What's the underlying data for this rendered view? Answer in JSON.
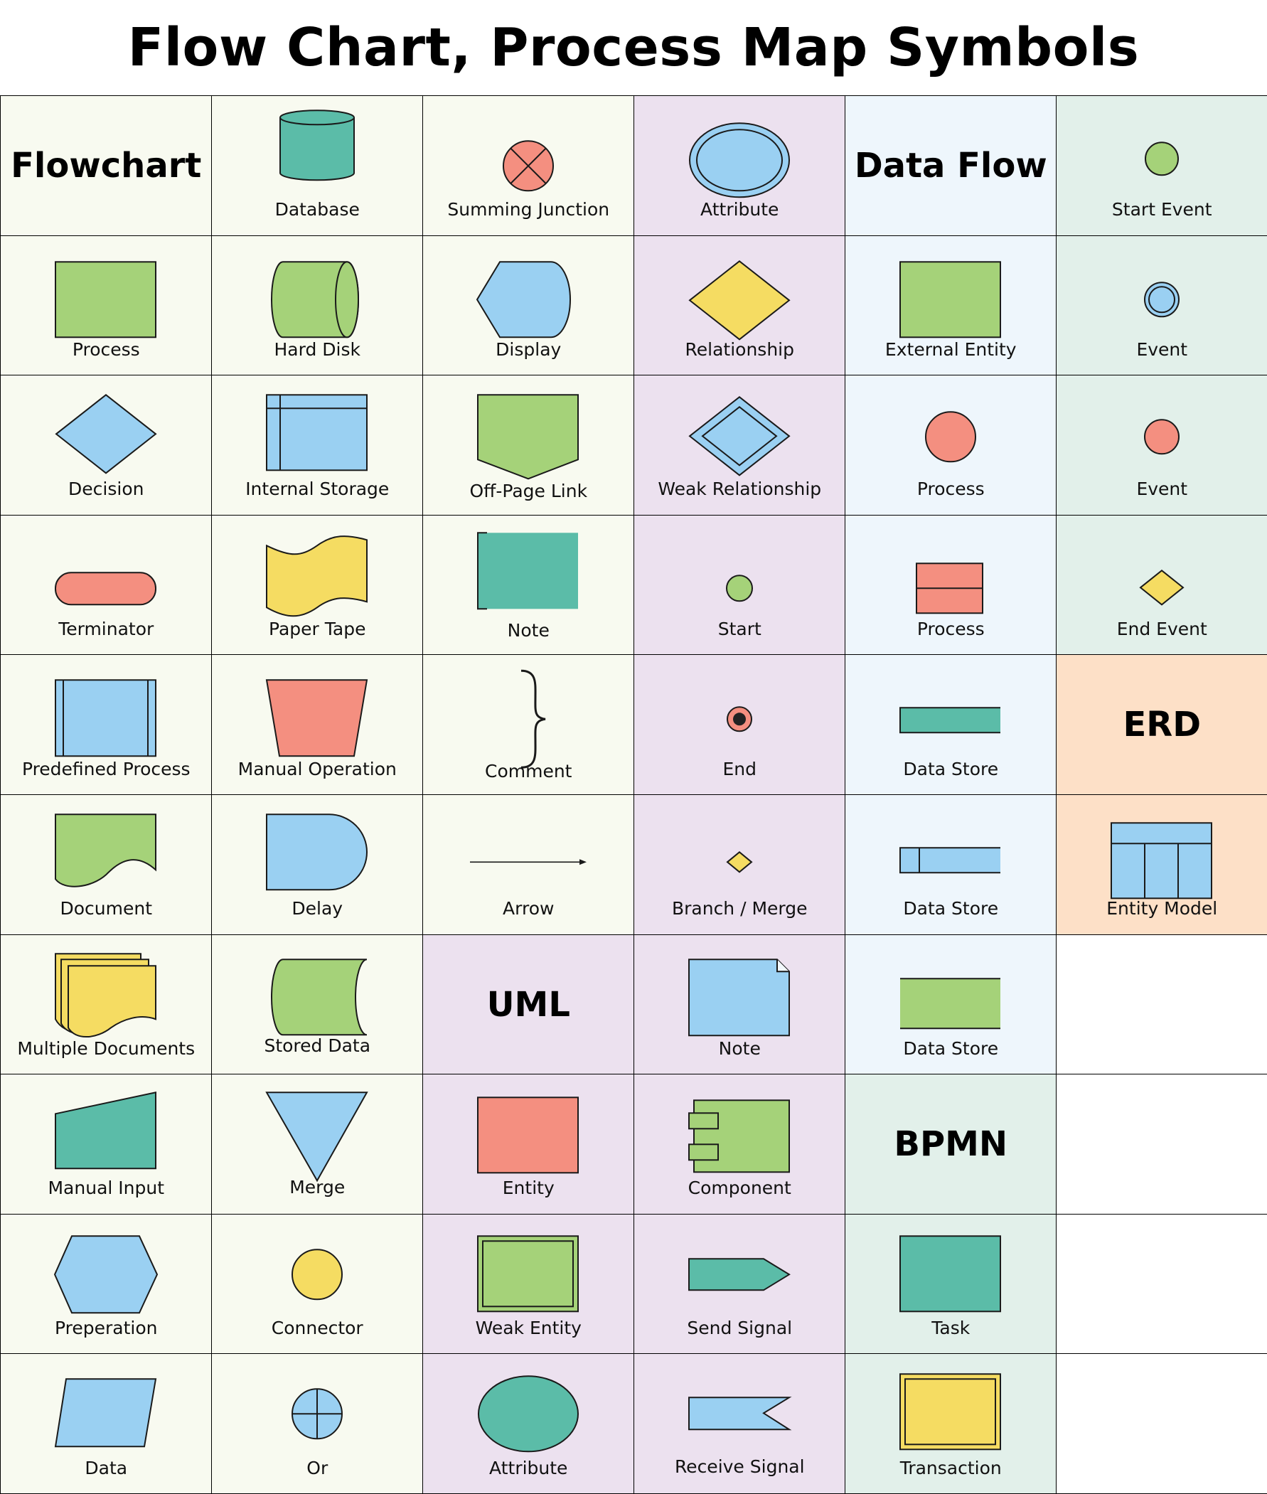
{
  "title": "Flow Chart, Process Map Symbols",
  "colors": {
    "flowchart_bg": "#f8faf0",
    "uml_bg": "#ece1ef",
    "dataflow_bg": "#eef6fc",
    "bpmn_bg": "#e2f0ea",
    "erd_bg": "#fde0c7",
    "empty_bg": "#ffffff",
    "green": "#a5d279",
    "teal": "#5bbca8",
    "blue": "#9ad0f2",
    "salmon": "#f48f80",
    "yellow": "#f5dc62",
    "stroke": "#1a1a1a"
  },
  "cells": [
    {
      "key": "r0c0",
      "heading": "Flowchart",
      "bg": "#f8faf0"
    },
    {
      "key": "r0c1",
      "label": "Database",
      "icon": "database-icon",
      "bg": "#f8faf0"
    },
    {
      "key": "r0c2",
      "label": "Summing Junction",
      "icon": "summing-junction-icon",
      "bg": "#f8faf0"
    },
    {
      "key": "r0c3",
      "label": "Attribute",
      "icon": "attribute-double-ellipse-icon",
      "bg": "#ece1ef"
    },
    {
      "key": "r0c4",
      "heading": "Data Flow",
      "bg": "#eef6fc"
    },
    {
      "key": "r0c5",
      "label": "Start Event",
      "icon": "start-event-icon",
      "bg": "#e2f0ea"
    },
    {
      "key": "r1c0",
      "label": "Process",
      "icon": "process-rectangle-icon",
      "bg": "#f8faf0"
    },
    {
      "key": "r1c1",
      "label": "Hard Disk",
      "icon": "hard-disk-icon",
      "bg": "#f8faf0"
    },
    {
      "key": "r1c2",
      "label": "Display",
      "icon": "display-icon",
      "bg": "#f8faf0"
    },
    {
      "key": "r1c3",
      "label": "Relationship",
      "icon": "relationship-diamond-icon",
      "bg": "#ece1ef"
    },
    {
      "key": "r1c4",
      "label": "External Entity",
      "icon": "external-entity-icon",
      "bg": "#eef6fc"
    },
    {
      "key": "r1c5",
      "label": "Event",
      "icon": "intermediate-event-icon",
      "bg": "#e2f0ea"
    },
    {
      "key": "r2c0",
      "label": "Decision",
      "icon": "decision-diamond-icon",
      "bg": "#f8faf0"
    },
    {
      "key": "r2c1",
      "label": "Internal Storage",
      "icon": "internal-storage-icon",
      "bg": "#f8faf0"
    },
    {
      "key": "r2c2",
      "label": "Off-Page Link",
      "icon": "off-page-link-icon",
      "bg": "#f8faf0"
    },
    {
      "key": "r2c3",
      "label": "Weak Relationship",
      "icon": "weak-relationship-icon",
      "bg": "#ece1ef"
    },
    {
      "key": "r2c4",
      "label": "Process",
      "icon": "process-circle-icon",
      "bg": "#eef6fc"
    },
    {
      "key": "r2c5",
      "label": "Event",
      "icon": "event-red-icon",
      "bg": "#e2f0ea"
    },
    {
      "key": "r3c0",
      "label": "Terminator",
      "icon": "terminator-icon",
      "bg": "#f8faf0"
    },
    {
      "key": "r3c1",
      "label": "Paper Tape",
      "icon": "paper-tape-icon",
      "bg": "#f8faf0"
    },
    {
      "key": "r3c2",
      "label": "Note",
      "icon": "note-bracket-icon",
      "bg": "#f8faf0"
    },
    {
      "key": "r3c3",
      "label": "Start",
      "icon": "uml-start-icon",
      "bg": "#ece1ef"
    },
    {
      "key": "r3c4",
      "label": "Process",
      "icon": "process-split-box-icon",
      "bg": "#eef6fc"
    },
    {
      "key": "r3c5",
      "label": "End Event",
      "icon": "end-event-icon",
      "bg": "#e2f0ea"
    },
    {
      "key": "r4c0",
      "label": "Predefined Process",
      "icon": "predefined-process-icon",
      "bg": "#f8faf0"
    },
    {
      "key": "r4c1",
      "label": "Manual Operation",
      "icon": "manual-operation-icon",
      "bg": "#f8faf0"
    },
    {
      "key": "r4c2",
      "label": "Comment",
      "icon": "comment-brace-icon",
      "bg": "#f8faf0"
    },
    {
      "key": "r4c3",
      "label": "End",
      "icon": "uml-end-icon",
      "bg": "#ece1ef"
    },
    {
      "key": "r4c4",
      "label": "Data Store",
      "icon": "data-store-open-icon",
      "bg": "#eef6fc"
    },
    {
      "key": "r4c5",
      "heading": "ERD",
      "bg": "#fde0c7"
    },
    {
      "key": "r5c0",
      "label": "Document",
      "icon": "document-icon",
      "bg": "#f8faf0"
    },
    {
      "key": "r5c1",
      "label": "Delay",
      "icon": "delay-icon",
      "bg": "#f8faf0"
    },
    {
      "key": "r5c2",
      "label": "Arrow",
      "icon": "arrow-icon",
      "bg": "#f8faf0"
    },
    {
      "key": "r5c3",
      "label": "Branch / Merge",
      "icon": "branch-merge-icon",
      "bg": "#ece1ef"
    },
    {
      "key": "r5c4",
      "label": "Data Store",
      "icon": "data-store-tab-icon",
      "bg": "#eef6fc"
    },
    {
      "key": "r5c5",
      "label": "Entity Model",
      "icon": "entity-model-icon",
      "bg": "#fde0c7"
    },
    {
      "key": "r6c0",
      "label": "Multiple Documents",
      "icon": "multiple-documents-icon",
      "bg": "#f8faf0"
    },
    {
      "key": "r6c1",
      "label": "Stored Data",
      "icon": "stored-data-icon",
      "bg": "#f8faf0"
    },
    {
      "key": "r6c2",
      "heading": "UML",
      "bg": "#ece1ef"
    },
    {
      "key": "r6c3",
      "label": "Note",
      "icon": "uml-note-icon",
      "bg": "#ece1ef"
    },
    {
      "key": "r6c4",
      "label": "Data Store",
      "icon": "data-store-lines-icon",
      "bg": "#eef6fc"
    },
    {
      "key": "r6c5",
      "bg": "#ffffff"
    },
    {
      "key": "r7c0",
      "label": "Manual Input",
      "icon": "manual-input-icon",
      "bg": "#f8faf0"
    },
    {
      "key": "r7c1",
      "label": "Merge",
      "icon": "merge-triangle-icon",
      "bg": "#f8faf0"
    },
    {
      "key": "r7c2",
      "label": "Entity",
      "icon": "entity-icon",
      "bg": "#ece1ef"
    },
    {
      "key": "r7c3",
      "label": "Component",
      "icon": "component-icon",
      "bg": "#ece1ef"
    },
    {
      "key": "r7c4",
      "heading": "BPMN",
      "bg": "#e2f0ea"
    },
    {
      "key": "r7c5",
      "bg": "#ffffff"
    },
    {
      "key": "r8c0",
      "label": "Preperation",
      "icon": "preparation-hexagon-icon",
      "bg": "#f8faf0"
    },
    {
      "key": "r8c1",
      "label": "Connector",
      "icon": "connector-circle-icon",
      "bg": "#f8faf0"
    },
    {
      "key": "r8c2",
      "label": "Weak Entity",
      "icon": "weak-entity-icon",
      "bg": "#ece1ef"
    },
    {
      "key": "r8c3",
      "label": "Send Signal",
      "icon": "send-signal-icon",
      "bg": "#ece1ef"
    },
    {
      "key": "r8c4",
      "label": "Task",
      "icon": "task-icon",
      "bg": "#e2f0ea"
    },
    {
      "key": "r8c5",
      "bg": "#ffffff"
    },
    {
      "key": "r9c0",
      "label": "Data",
      "icon": "data-parallelogram-icon",
      "bg": "#f8faf0"
    },
    {
      "key": "r9c1",
      "label": "Or",
      "icon": "or-circle-icon",
      "bg": "#f8faf0"
    },
    {
      "key": "r9c2",
      "label": "Attribute",
      "icon": "attribute-ellipse-icon",
      "bg": "#ece1ef"
    },
    {
      "key": "r9c3",
      "label": "Receive Signal",
      "icon": "receive-signal-icon",
      "bg": "#ece1ef"
    },
    {
      "key": "r9c4",
      "label": "Transaction",
      "icon": "transaction-icon",
      "bg": "#e2f0ea"
    },
    {
      "key": "r9c5",
      "bg": "#ffffff"
    }
  ]
}
